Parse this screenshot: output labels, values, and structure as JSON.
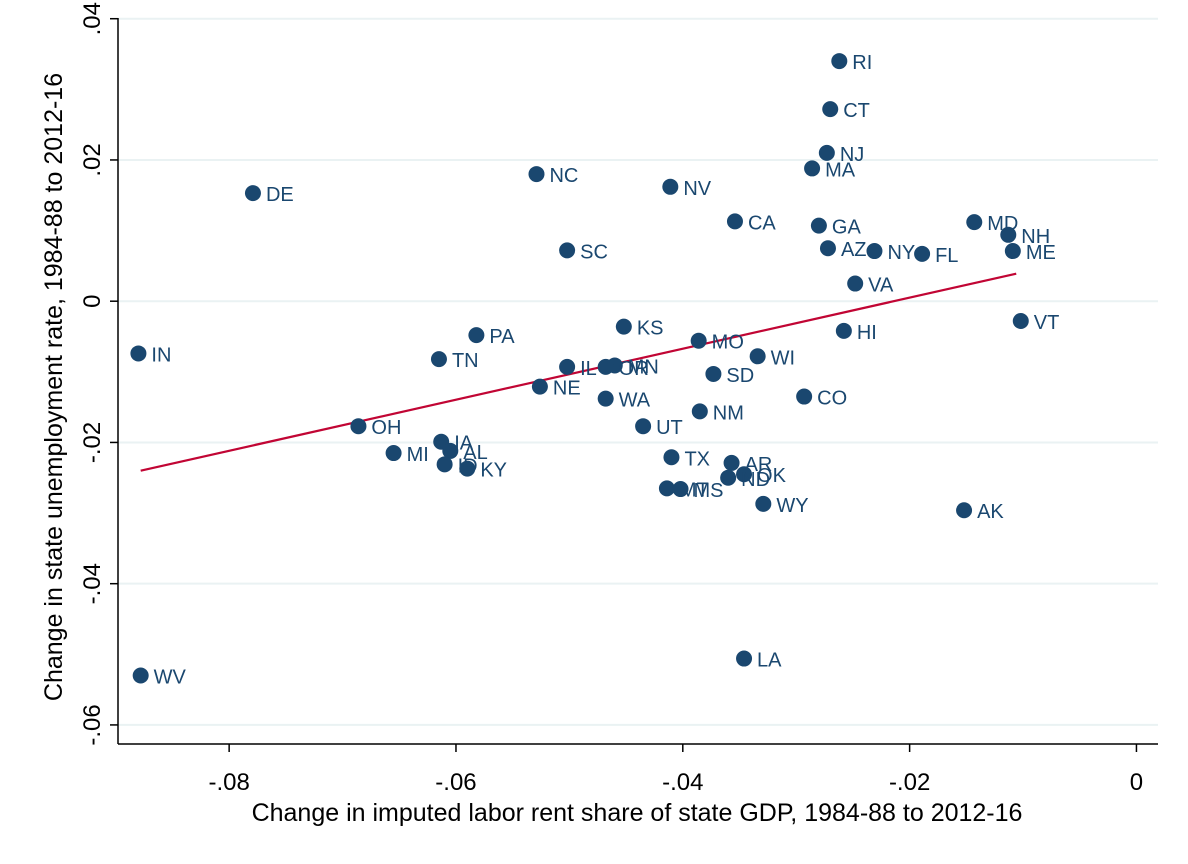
{
  "chart_data": {
    "type": "scatter",
    "xlabel": "Change in imputed labor rent share of state GDP, 1984-88 to 2012-16",
    "ylabel": "Change in state unemployment rate, 1984-88 to 2012-16",
    "xlim": [
      -0.0898,
      0.0019
    ],
    "ylim": [
      -0.0627,
      0.0401
    ],
    "x_ticks": [
      -0.08,
      -0.06,
      -0.04,
      -0.02,
      0
    ],
    "x_tick_labels": [
      "-.08",
      "-.06",
      "-.04",
      "-.02",
      "0"
    ],
    "y_ticks": [
      -0.06,
      -0.04,
      -0.02,
      0,
      0.02,
      0.04
    ],
    "y_tick_labels": [
      "-.06",
      "-.04",
      "-.02",
      "0",
      ".02",
      ".04"
    ],
    "grid": true,
    "marker_color": "#1a476f",
    "fit_color": "#c10534",
    "fit_line": {
      "x": [
        -0.0878,
        -0.0106
      ],
      "y": [
        -0.024,
        0.0039
      ]
    },
    "points": [
      {
        "label": "RI",
        "x": -0.0262,
        "y": 0.034
      },
      {
        "label": "CT",
        "x": -0.027,
        "y": 0.0272
      },
      {
        "label": "NJ",
        "x": -0.0273,
        "y": 0.021
      },
      {
        "label": "MA",
        "x": -0.0286,
        "y": 0.0188
      },
      {
        "label": "NC",
        "x": -0.0529,
        "y": 0.018
      },
      {
        "label": "NV",
        "x": -0.0411,
        "y": 0.0162
      },
      {
        "label": "DE",
        "x": -0.0779,
        "y": 0.0153
      },
      {
        "label": "CA",
        "x": -0.0354,
        "y": 0.0113
      },
      {
        "label": "MD",
        "x": -0.0143,
        "y": 0.0112
      },
      {
        "label": "GA",
        "x": -0.028,
        "y": 0.0107
      },
      {
        "label": "NH",
        "x": -0.0113,
        "y": 0.0094
      },
      {
        "label": "AZ",
        "x": -0.0272,
        "y": 0.0075
      },
      {
        "label": "SC",
        "x": -0.0502,
        "y": 0.0072
      },
      {
        "label": "NY",
        "x": -0.0231,
        "y": 0.0071
      },
      {
        "label": "ME",
        "x": -0.0109,
        "y": 0.0071
      },
      {
        "label": "FL",
        "x": -0.0189,
        "y": 0.0067
      },
      {
        "label": "VA",
        "x": -0.0248,
        "y": 0.0025
      },
      {
        "label": "VT",
        "x": -0.0102,
        "y": -0.0028
      },
      {
        "label": "KS",
        "x": -0.0452,
        "y": -0.0036
      },
      {
        "label": "HI",
        "x": -0.0258,
        "y": -0.0042
      },
      {
        "label": "PA",
        "x": -0.0582,
        "y": -0.0048
      },
      {
        "label": "MO",
        "x": -0.0386,
        "y": -0.0056
      },
      {
        "label": "IN",
        "x": -0.088,
        "y": -0.0074
      },
      {
        "label": "WI",
        "x": -0.0334,
        "y": -0.0078
      },
      {
        "label": "TN",
        "x": -0.0615,
        "y": -0.0082
      },
      {
        "label": "IL",
        "x": -0.0502,
        "y": -0.0093
      },
      {
        "label": "MN",
        "x": -0.046,
        "y": -0.0091
      },
      {
        "label": "OR",
        "x": -0.0468,
        "y": -0.0093
      },
      {
        "label": "SD",
        "x": -0.0373,
        "y": -0.0103
      },
      {
        "label": "NE",
        "x": -0.0526,
        "y": -0.0121
      },
      {
        "label": "CO",
        "x": -0.0293,
        "y": -0.0135
      },
      {
        "label": "WA",
        "x": -0.0468,
        "y": -0.0138
      },
      {
        "label": "NM",
        "x": -0.0385,
        "y": -0.0156
      },
      {
        "label": "OH",
        "x": -0.0686,
        "y": -0.0177
      },
      {
        "label": "UT",
        "x": -0.0435,
        "y": -0.0177
      },
      {
        "label": "IA",
        "x": -0.0613,
        "y": -0.0199
      },
      {
        "label": "AL",
        "x": -0.0605,
        "y": -0.0212
      },
      {
        "label": "MI",
        "x": -0.0655,
        "y": -0.0215
      },
      {
        "label": "TX",
        "x": -0.041,
        "y": -0.0221
      },
      {
        "label": "AR",
        "x": -0.0357,
        "y": -0.0229
      },
      {
        "label": "ID",
        "x": -0.061,
        "y": -0.0231
      },
      {
        "label": "KY",
        "x": -0.059,
        "y": -0.0237
      },
      {
        "label": "OK",
        "x": -0.0346,
        "y": -0.0245
      },
      {
        "label": "ND",
        "x": -0.036,
        "y": -0.025
      },
      {
        "label": "MT",
        "x": -0.0414,
        "y": -0.0265
      },
      {
        "label": "MS",
        "x": -0.0402,
        "y": -0.0266
      },
      {
        "label": "WY",
        "x": -0.0329,
        "y": -0.0287
      },
      {
        "label": "AK",
        "x": -0.0152,
        "y": -0.0296
      },
      {
        "label": "LA",
        "x": -0.0346,
        "y": -0.0506
      },
      {
        "label": "WV",
        "x": -0.0878,
        "y": -0.053
      }
    ]
  }
}
